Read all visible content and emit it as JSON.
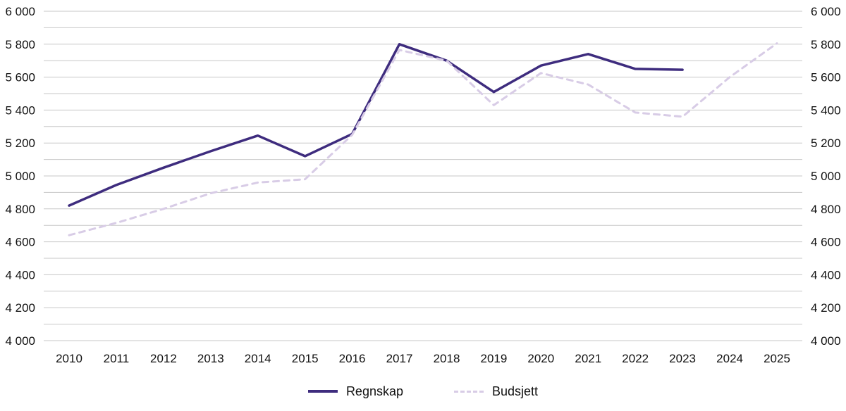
{
  "chart_data": {
    "type": "line",
    "title": "",
    "xlabel": "",
    "ylabel": "",
    "x_labels": [
      "2010",
      "2011",
      "2012",
      "2013",
      "2014",
      "2015",
      "2016",
      "2017",
      "2018",
      "2019",
      "2020",
      "2021",
      "2022",
      "2023",
      "2024",
      "2025"
    ],
    "ylim": [
      4000,
      6000
    ],
    "grid": true,
    "grid_step": 100,
    "legend_position": "bottom",
    "yticks": [
      {
        "value": 4000,
        "label": "4 000"
      },
      {
        "value": 4200,
        "label": "4 200"
      },
      {
        "value": 4400,
        "label": "4 400"
      },
      {
        "value": 4600,
        "label": "4 600"
      },
      {
        "value": 4800,
        "label": "4 800"
      },
      {
        "value": 5000,
        "label": "5 000"
      },
      {
        "value": 5200,
        "label": "5 200"
      },
      {
        "value": 5400,
        "label": "5 400"
      },
      {
        "value": 5600,
        "label": "5 600"
      },
      {
        "value": 5800,
        "label": "5 800"
      },
      {
        "value": 6000,
        "label": "6 000"
      }
    ],
    "series": [
      {
        "name": "Regnskap",
        "color": "#3e2c7e",
        "width": 3.5,
        "dash": null,
        "values": [
          4820,
          4945,
          5050,
          5150,
          5245,
          5120,
          5255,
          5800,
          5700,
          5510,
          5670,
          5740,
          5650,
          5645,
          null,
          null
        ]
      },
      {
        "name": "Budsjett",
        "color": "#d8cce6",
        "width": 3,
        "dash": "8,7",
        "values": [
          4640,
          4715,
          4800,
          4895,
          4960,
          4980,
          5250,
          5765,
          5700,
          5430,
          5625,
          5555,
          5385,
          5360,
          5600,
          5805
        ]
      }
    ]
  }
}
